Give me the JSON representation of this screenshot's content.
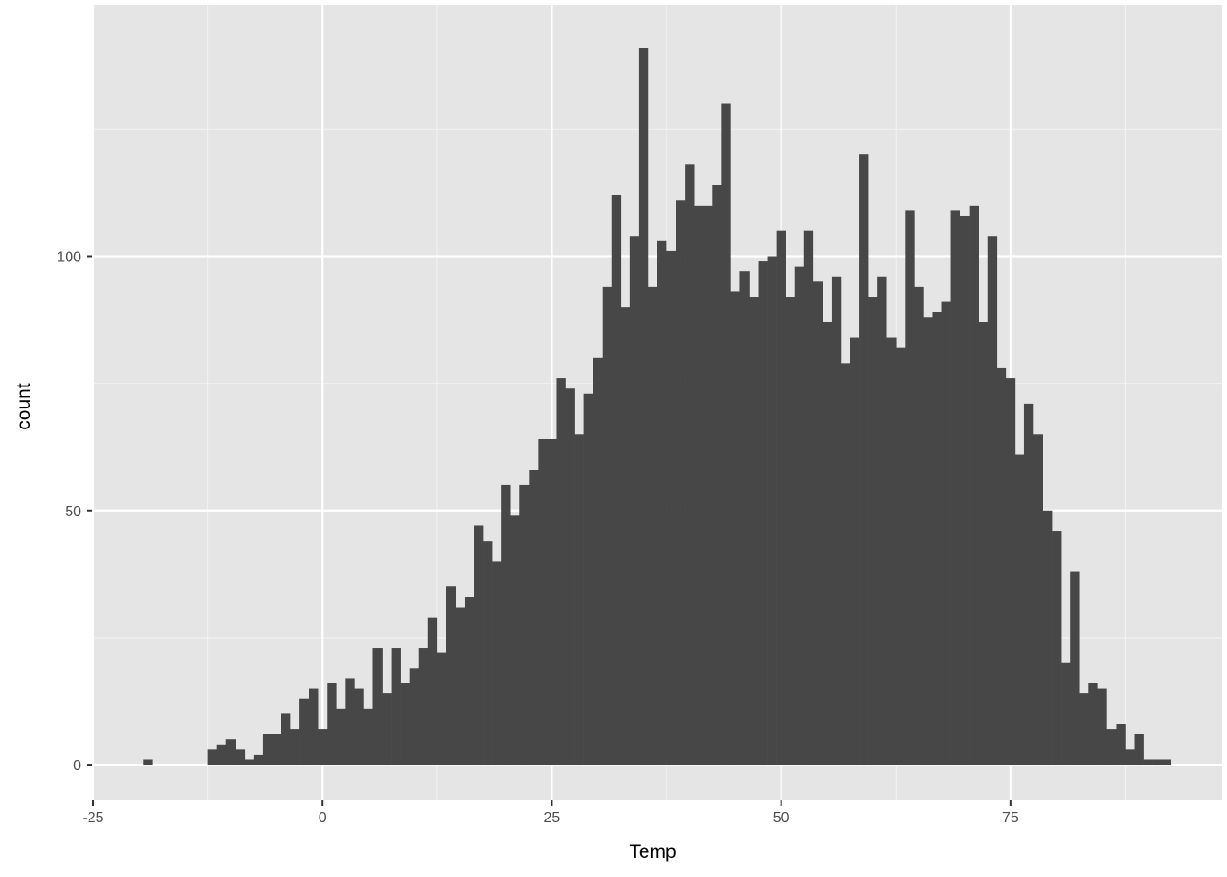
{
  "chart_data": {
    "type": "bar",
    "subtype": "histogram",
    "xlabel": "Temp",
    "ylabel": "count",
    "binwidth": 1,
    "xlim": [
      -25.1,
      98.1
    ],
    "ylim": [
      -7,
      149.5
    ],
    "x_ticks": [
      -25,
      0,
      25,
      50,
      75
    ],
    "x_tick_labels": [
      "-25",
      "0",
      "25",
      "50",
      "75"
    ],
    "y_ticks": [
      0,
      50,
      100
    ],
    "y_tick_labels": [
      "0",
      "50",
      "100"
    ],
    "grid": true,
    "bar_color": "#474747",
    "panel_color": "#e5e5e5",
    "bins": [
      {
        "x": -19,
        "count": 1
      },
      {
        "x": -12,
        "count": 3
      },
      {
        "x": -11,
        "count": 4
      },
      {
        "x": -10,
        "count": 5
      },
      {
        "x": -9,
        "count": 3
      },
      {
        "x": -8,
        "count": 1
      },
      {
        "x": -7,
        "count": 2
      },
      {
        "x": -6,
        "count": 6
      },
      {
        "x": -5,
        "count": 6
      },
      {
        "x": -4,
        "count": 10
      },
      {
        "x": -3,
        "count": 7
      },
      {
        "x": -2,
        "count": 13
      },
      {
        "x": -1,
        "count": 15
      },
      {
        "x": 0,
        "count": 7
      },
      {
        "x": 1,
        "count": 16
      },
      {
        "x": 2,
        "count": 11
      },
      {
        "x": 3,
        "count": 17
      },
      {
        "x": 4,
        "count": 15
      },
      {
        "x": 5,
        "count": 11
      },
      {
        "x": 6,
        "count": 23
      },
      {
        "x": 7,
        "count": 14
      },
      {
        "x": 8,
        "count": 23
      },
      {
        "x": 9,
        "count": 16
      },
      {
        "x": 10,
        "count": 19
      },
      {
        "x": 11,
        "count": 23
      },
      {
        "x": 12,
        "count": 29
      },
      {
        "x": 13,
        "count": 22
      },
      {
        "x": 14,
        "count": 35
      },
      {
        "x": 15,
        "count": 31
      },
      {
        "x": 16,
        "count": 33
      },
      {
        "x": 17,
        "count": 47
      },
      {
        "x": 18,
        "count": 44
      },
      {
        "x": 19,
        "count": 40
      },
      {
        "x": 20,
        "count": 55
      },
      {
        "x": 21,
        "count": 49
      },
      {
        "x": 22,
        "count": 55
      },
      {
        "x": 23,
        "count": 58
      },
      {
        "x": 24,
        "count": 64
      },
      {
        "x": 25,
        "count": 64
      },
      {
        "x": 26,
        "count": 76
      },
      {
        "x": 27,
        "count": 74
      },
      {
        "x": 28,
        "count": 65
      },
      {
        "x": 29,
        "count": 73
      },
      {
        "x": 30,
        "count": 80
      },
      {
        "x": 31,
        "count": 94
      },
      {
        "x": 32,
        "count": 112
      },
      {
        "x": 33,
        "count": 90
      },
      {
        "x": 34,
        "count": 104
      },
      {
        "x": 35,
        "count": 141
      },
      {
        "x": 36,
        "count": 94
      },
      {
        "x": 37,
        "count": 103
      },
      {
        "x": 38,
        "count": 101
      },
      {
        "x": 39,
        "count": 111
      },
      {
        "x": 40,
        "count": 118
      },
      {
        "x": 41,
        "count": 110
      },
      {
        "x": 42,
        "count": 110
      },
      {
        "x": 43,
        "count": 114
      },
      {
        "x": 44,
        "count": 130
      },
      {
        "x": 45,
        "count": 93
      },
      {
        "x": 46,
        "count": 97
      },
      {
        "x": 47,
        "count": 92
      },
      {
        "x": 48,
        "count": 99
      },
      {
        "x": 49,
        "count": 100
      },
      {
        "x": 50,
        "count": 105
      },
      {
        "x": 51,
        "count": 92
      },
      {
        "x": 52,
        "count": 98
      },
      {
        "x": 53,
        "count": 105
      },
      {
        "x": 54,
        "count": 95
      },
      {
        "x": 55,
        "count": 87
      },
      {
        "x": 56,
        "count": 96
      },
      {
        "x": 57,
        "count": 79
      },
      {
        "x": 58,
        "count": 84
      },
      {
        "x": 59,
        "count": 120
      },
      {
        "x": 60,
        "count": 92
      },
      {
        "x": 61,
        "count": 96
      },
      {
        "x": 62,
        "count": 84
      },
      {
        "x": 63,
        "count": 82
      },
      {
        "x": 64,
        "count": 109
      },
      {
        "x": 65,
        "count": 94
      },
      {
        "x": 66,
        "count": 88
      },
      {
        "x": 67,
        "count": 89
      },
      {
        "x": 68,
        "count": 91
      },
      {
        "x": 69,
        "count": 109
      },
      {
        "x": 70,
        "count": 108
      },
      {
        "x": 71,
        "count": 110
      },
      {
        "x": 72,
        "count": 87
      },
      {
        "x": 73,
        "count": 104
      },
      {
        "x": 74,
        "count": 78
      },
      {
        "x": 75,
        "count": 76
      },
      {
        "x": 76,
        "count": 61
      },
      {
        "x": 77,
        "count": 71
      },
      {
        "x": 78,
        "count": 65
      },
      {
        "x": 79,
        "count": 50
      },
      {
        "x": 80,
        "count": 46
      },
      {
        "x": 81,
        "count": 20
      },
      {
        "x": 82,
        "count": 38
      },
      {
        "x": 83,
        "count": 14
      },
      {
        "x": 84,
        "count": 16
      },
      {
        "x": 85,
        "count": 15
      },
      {
        "x": 86,
        "count": 7
      },
      {
        "x": 87,
        "count": 8
      },
      {
        "x": 88,
        "count": 3
      },
      {
        "x": 89,
        "count": 6
      },
      {
        "x": 90,
        "count": 1
      },
      {
        "x": 91,
        "count": 1
      },
      {
        "x": 92,
        "count": 1
      }
    ]
  }
}
